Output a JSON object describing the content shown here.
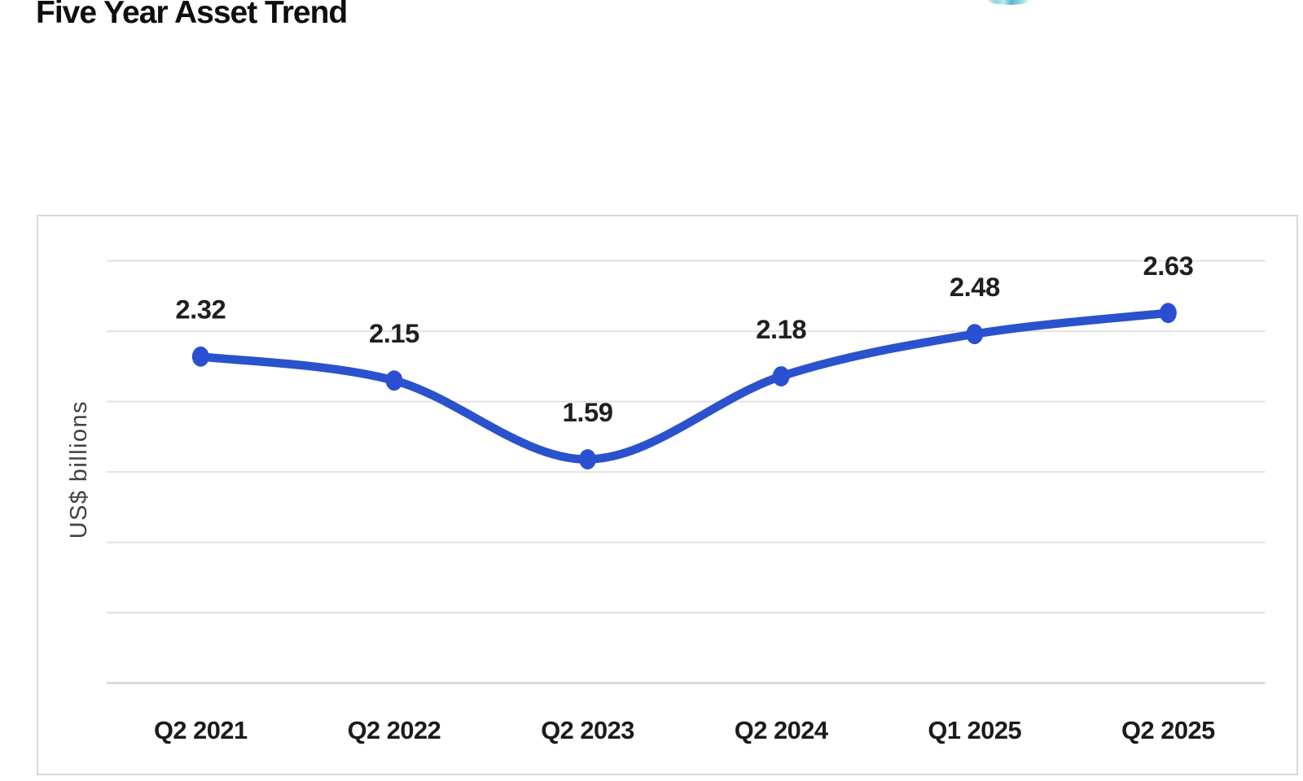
{
  "page": {
    "title": "Five Year Asset Trend"
  },
  "logo": {
    "name": "clipped-circular-logo",
    "colors": [
      "#8fd2da",
      "#bfe9ee",
      "#5fb3d6"
    ]
  },
  "chart_data": {
    "type": "line",
    "title": "Five Year Asset Trend",
    "categories": [
      "Q2 2021",
      "Q2 2022",
      "Q2 2023",
      "Q2 2024",
      "Q1 2025",
      "Q2 2025"
    ],
    "values": [
      2.32,
      2.15,
      1.59,
      2.18,
      2.48,
      2.63
    ],
    "data_labels": [
      "2.32",
      "2.15",
      "1.59",
      "2.18",
      "2.48",
      "2.63"
    ],
    "xlabel": "",
    "ylabel": "US$ billions",
    "ylim": [
      0,
      3
    ],
    "grid_step": 0.5,
    "grid": true,
    "legend": false,
    "colors": {
      "line": "#2a52cc",
      "marker": "#2b4fd2",
      "data_label": "#1d211e",
      "tick_label": "#1b1b1b",
      "axis_title": "#3d4440",
      "gridline": "#e2e2e2",
      "axis_line": "#d4d4d4",
      "panel_border": "#d9d9d9"
    }
  }
}
